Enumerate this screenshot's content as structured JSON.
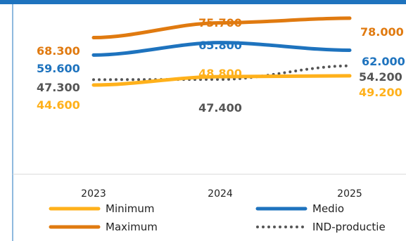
{
  "chart_data": {
    "type": "line",
    "x": [
      "2023",
      "2024",
      "2025"
    ],
    "ylim": [
      0,
      85000
    ],
    "grid": false,
    "legend_position": "bottom",
    "series": [
      {
        "name": "Maximum",
        "values": [
          68300,
          75700,
          78000
        ],
        "labels": [
          "68.300",
          "75.700",
          "78.000"
        ],
        "color": "#E07A10",
        "style": "solid"
      },
      {
        "name": "Medio",
        "values": [
          59600,
          65800,
          62000
        ],
        "labels": [
          "59.600",
          "65.800",
          "62.000"
        ],
        "color": "#1E73BE",
        "style": "solid"
      },
      {
        "name": "IND-productie",
        "values": [
          47300,
          47400,
          54200
        ],
        "labels": [
          "47.300",
          "47.400",
          "54.200"
        ],
        "color": "#555555",
        "style": "dotted"
      },
      {
        "name": "Minimum",
        "values": [
          44600,
          48800,
          49200
        ],
        "labels": [
          "44.600",
          "48.800",
          "49.200"
        ],
        "color": "#FFB11B",
        "style": "solid"
      }
    ]
  }
}
